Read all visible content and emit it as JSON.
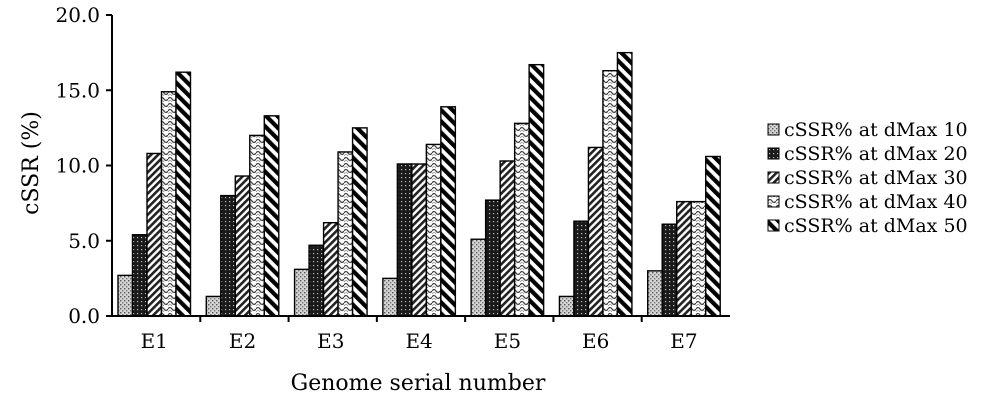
{
  "chart_data": {
    "type": "bar",
    "title": "",
    "xlabel": "Genome serial number",
    "ylabel": "cSSR (%)",
    "ylim": [
      0,
      20
    ],
    "yticks": [
      "0.0",
      "5.0",
      "10.0",
      "15.0",
      "20.0"
    ],
    "categories": [
      "E1",
      "E2",
      "E3",
      "E4",
      "E5",
      "E6",
      "E7"
    ],
    "series": [
      {
        "name": "cSSR% at dMax 10",
        "values": [
          2.7,
          1.3,
          3.1,
          2.5,
          5.1,
          1.3,
          3.0
        ],
        "pattern": "dots-light"
      },
      {
        "name": "cSSR% at dMax 20",
        "values": [
          5.4,
          8.0,
          4.7,
          10.1,
          7.7,
          6.3,
          6.1
        ],
        "pattern": "dots-dark"
      },
      {
        "name": "cSSR% at dMax 30",
        "values": [
          10.8,
          9.3,
          6.2,
          10.1,
          10.3,
          11.2,
          7.6
        ],
        "pattern": "diag-fine"
      },
      {
        "name": "cSSR% at dMax 40",
        "values": [
          14.9,
          12.0,
          10.9,
          11.4,
          12.8,
          16.3,
          7.6
        ],
        "pattern": "wave"
      },
      {
        "name": "cSSR% at dMax 50",
        "values": [
          16.2,
          13.3,
          12.5,
          13.9,
          16.7,
          17.5,
          10.6
        ],
        "pattern": "diag-bold"
      }
    ],
    "legend_position": "right",
    "grid": false
  }
}
